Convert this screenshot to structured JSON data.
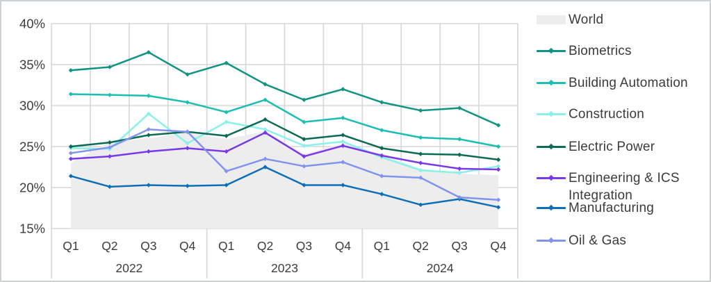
{
  "chart_data": {
    "type": "line",
    "title": "",
    "xlabel": "",
    "ylabel": "",
    "grid": true,
    "legend_position": "right",
    "ylim": [
      15,
      40
    ],
    "y_ticks": [
      {
        "value": 40,
        "label": "40%"
      },
      {
        "value": 35,
        "label": "35%"
      },
      {
        "value": 30,
        "label": "30%"
      },
      {
        "value": 25,
        "label": "25%"
      },
      {
        "value": 20,
        "label": "20%"
      },
      {
        "value": 15,
        "label": "15%"
      }
    ],
    "quarters": [
      "Q1",
      "Q2",
      "Q3",
      "Q4",
      "Q1",
      "Q2",
      "Q3",
      "Q4",
      "Q1",
      "Q2",
      "Q3",
      "Q4"
    ],
    "years": [
      "2022",
      "2023",
      "2024"
    ],
    "grid_color": "#d6d6d6",
    "text_color": "#3d3d3d",
    "series": [
      {
        "name": "World",
        "type": "area",
        "color": "#ededed",
        "values": [
          23.0,
          25.6,
          26.0,
          26.7,
          25.9,
          26.9,
          24.1,
          25.4,
          24.1,
          22.3,
          21.7,
          21.5
        ]
      },
      {
        "name": "Biometrics",
        "type": "line",
        "color": "#0e9384",
        "values": [
          34.3,
          34.7,
          36.5,
          33.8,
          35.2,
          32.6,
          30.7,
          32.0,
          30.4,
          29.4,
          29.7,
          27.6
        ]
      },
      {
        "name": "Building Automation",
        "type": "line",
        "color": "#1abeb3",
        "values": [
          31.4,
          31.3,
          31.2,
          30.4,
          29.2,
          30.7,
          28.0,
          28.5,
          27.0,
          26.1,
          25.9,
          25.0
        ]
      },
      {
        "name": "Construction",
        "type": "line",
        "color": "#8af0ea",
        "values": [
          24.8,
          24.7,
          29.0,
          25.4,
          28.0,
          27.1,
          25.1,
          25.6,
          23.7,
          22.1,
          21.8,
          22.6
        ]
      },
      {
        "name": "Electric Power",
        "type": "line",
        "color": "#0c6b56",
        "values": [
          25.0,
          25.5,
          26.4,
          26.8,
          26.3,
          28.3,
          25.9,
          26.4,
          24.8,
          24.1,
          24.0,
          23.4
        ]
      },
      {
        "name": "Engineering & ICS Integration",
        "type": "line",
        "color": "#7939e8",
        "values": [
          23.5,
          23.8,
          24.4,
          24.8,
          24.4,
          26.7,
          23.8,
          25.1,
          23.9,
          23.0,
          22.3,
          22.2
        ]
      },
      {
        "name": "Manufacturing",
        "type": "line",
        "color": "#0d6eb8",
        "values": [
          21.4,
          20.1,
          20.3,
          20.2,
          20.3,
          22.5,
          20.3,
          20.3,
          19.2,
          17.9,
          18.6,
          17.6
        ]
      },
      {
        "name": "Oil & Gas",
        "type": "line",
        "color": "#8093ef",
        "values": [
          24.2,
          24.9,
          27.1,
          26.8,
          22.0,
          23.5,
          22.6,
          23.1,
          21.4,
          21.2,
          18.8,
          18.5
        ]
      }
    ]
  }
}
